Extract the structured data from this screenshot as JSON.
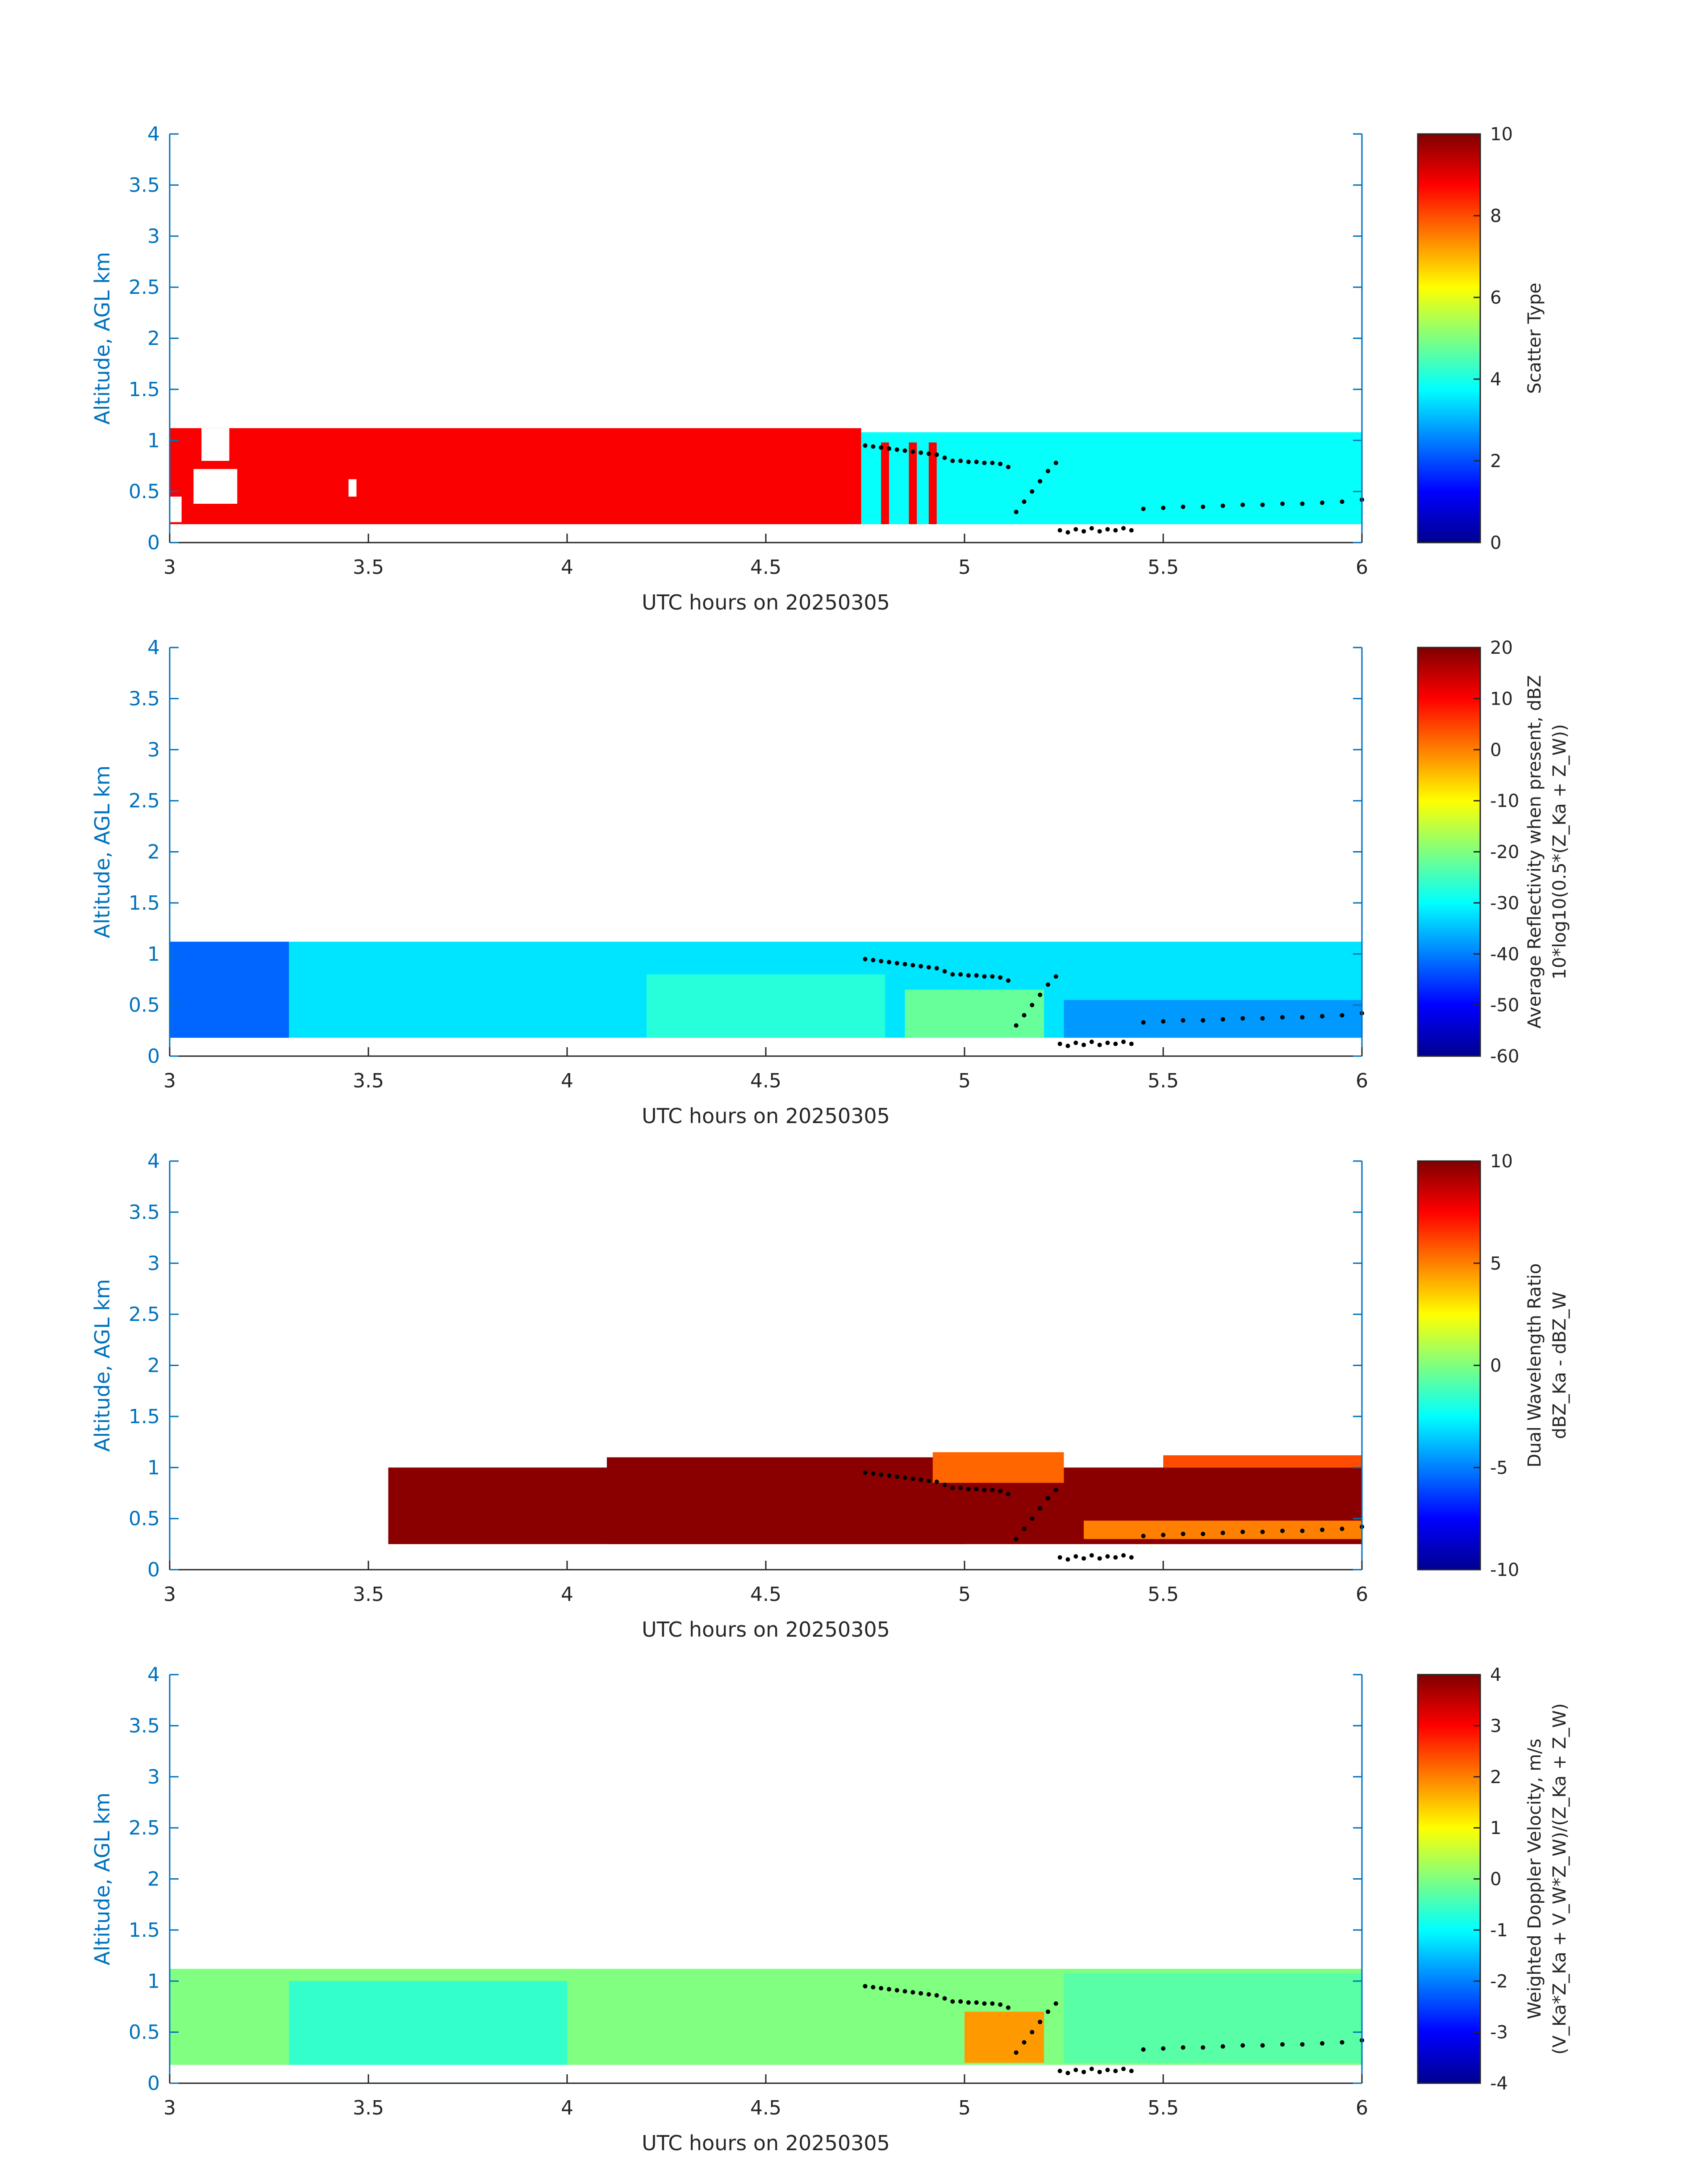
{
  "figure": {
    "xlabel": "UTC hours on 20250305",
    "ylabel": "Altitude, AGL km",
    "xlim": [
      3,
      6
    ],
    "ylim": [
      0,
      4
    ],
    "x_tick_labels": [
      "3",
      "3.5",
      "4",
      "4.5",
      "5",
      "5.5",
      "6"
    ],
    "y_tick_labels": [
      "0",
      "0.5",
      "1",
      "1.5",
      "2",
      "2.5",
      "3",
      "3.5",
      "4"
    ],
    "x_ticks": [
      3,
      3.5,
      4,
      4.5,
      5,
      5.5,
      6
    ],
    "y_ticks": [
      0,
      0.5,
      1,
      1.5,
      2,
      2.5,
      3,
      3.5,
      4
    ],
    "colormap": "jet",
    "axis_color": "#0072bd",
    "marker_color": "#000000"
  },
  "chart_data": [
    {
      "type": "heatmap",
      "colorbar_label_lines": [
        "Scatter Type"
      ],
      "clim": [
        0,
        10
      ],
      "colorbar_ticks": [
        0,
        2,
        4,
        6,
        8,
        10
      ],
      "colorbar_tick_labels": [
        "0",
        "2",
        "4",
        "6",
        "8",
        "10"
      ],
      "segments": [
        {
          "x0": 3.0,
          "x1": 4.74,
          "y0": 0.18,
          "y1": 1.12,
          "value": 8.8
        },
        {
          "x0": 4.74,
          "x1": 6.0,
          "y0": 0.18,
          "y1": 1.08,
          "value": 3.8
        },
        {
          "x0": 4.79,
          "x1": 4.81,
          "y0": 0.18,
          "y1": 0.98,
          "value": 8.8
        },
        {
          "x0": 4.86,
          "x1": 4.88,
          "y0": 0.18,
          "y1": 0.98,
          "value": 8.8
        },
        {
          "x0": 4.91,
          "x1": 4.93,
          "y0": 0.18,
          "y1": 0.98,
          "value": 8.8
        }
      ],
      "gaps": [
        {
          "x0": 3.0,
          "x1": 3.03,
          "y0": 0.2,
          "y1": 0.45
        },
        {
          "x0": 3.06,
          "x1": 3.17,
          "y0": 0.38,
          "y1": 0.72
        },
        {
          "x0": 3.08,
          "x1": 3.15,
          "y0": 0.8,
          "y1": 1.12
        },
        {
          "x0": 3.45,
          "x1": 3.47,
          "y0": 0.45,
          "y1": 0.62
        }
      ]
    },
    {
      "type": "heatmap",
      "colorbar_label_lines": [
        "Average Reflectivity when present, dBZ",
        "10*log10(0.5*(Z_Ka + Z_W))"
      ],
      "clim": [
        -60,
        20
      ],
      "colorbar_ticks": [
        -60,
        -50,
        -40,
        -30,
        -20,
        -10,
        0,
        10,
        20
      ],
      "colorbar_tick_labels": [
        "-60",
        "-50",
        "-40",
        "-30",
        "-20",
        "-10",
        "0",
        "10",
        "20"
      ],
      "segments": [
        {
          "x0": 3.0,
          "x1": 6.0,
          "y0": 0.18,
          "y1": 1.12,
          "value": -32
        },
        {
          "x0": 3.0,
          "x1": 3.3,
          "y0": 0.18,
          "y1": 1.12,
          "value": -42
        },
        {
          "x0": 4.2,
          "x1": 4.8,
          "y0": 0.18,
          "y1": 0.8,
          "value": -27
        },
        {
          "x0": 4.85,
          "x1": 5.2,
          "y0": 0.18,
          "y1": 0.65,
          "value": -22
        },
        {
          "x0": 5.25,
          "x1": 6.0,
          "y0": 0.18,
          "y1": 0.55,
          "value": -38
        }
      ],
      "gaps": []
    },
    {
      "type": "heatmap",
      "colorbar_label_lines": [
        "Dual Wavelength Ratio",
        "dBZ_Ka - dBZ_W"
      ],
      "clim": [
        -10,
        10
      ],
      "colorbar_ticks": [
        -10,
        -5,
        0,
        5,
        10
      ],
      "colorbar_tick_labels": [
        "-10",
        "-5",
        "0",
        "5",
        "10"
      ],
      "segments": [
        {
          "x0": 3.55,
          "x1": 6.0,
          "y0": 0.25,
          "y1": 1.0,
          "value": 9.8
        },
        {
          "x0": 4.1,
          "x1": 5.0,
          "y0": 0.25,
          "y1": 1.1,
          "value": 9.8
        },
        {
          "x0": 4.92,
          "x1": 5.25,
          "y0": 0.85,
          "y1": 1.15,
          "value": 5.5
        },
        {
          "x0": 5.3,
          "x1": 6.0,
          "y0": 0.3,
          "y1": 0.48,
          "value": 5.0
        },
        {
          "x0": 5.5,
          "x1": 6.0,
          "y0": 1.0,
          "y1": 1.12,
          "value": 6.0
        }
      ],
      "gaps": []
    },
    {
      "type": "heatmap",
      "colorbar_label_lines": [
        "Weighted Doppler Velocity, m/s",
        "(V_Ka*Z_Ka + V_W*Z_W)/(Z_Ka + Z_W)"
      ],
      "clim": [
        -4,
        4
      ],
      "colorbar_ticks": [
        -4,
        -3,
        -2,
        -1,
        0,
        1,
        2,
        3,
        4
      ],
      "colorbar_tick_labels": [
        "-4",
        "-3",
        "-2",
        "-1",
        "0",
        "1",
        "2",
        "3",
        "4"
      ],
      "segments": [
        {
          "x0": 3.0,
          "x1": 6.0,
          "y0": 0.18,
          "y1": 1.12,
          "value": 0.0
        },
        {
          "x0": 3.3,
          "x1": 4.0,
          "y0": 0.18,
          "y1": 1.0,
          "value": -0.6
        },
        {
          "x0": 5.0,
          "x1": 5.2,
          "y0": 0.2,
          "y1": 0.7,
          "value": 1.8
        },
        {
          "x0": 5.25,
          "x1": 6.0,
          "y0": 0.2,
          "y1": 1.08,
          "value": -0.3
        }
      ],
      "gaps": []
    }
  ],
  "markers": {
    "line1_x": [
      4.75,
      4.77,
      4.79,
      4.81,
      4.83,
      4.85,
      4.87,
      4.89,
      4.91,
      4.93,
      4.95,
      4.97,
      4.99,
      5.01,
      5.03,
      5.05,
      5.07,
      5.09,
      5.11
    ],
    "line1_y": [
      0.95,
      0.94,
      0.93,
      0.92,
      0.91,
      0.9,
      0.89,
      0.88,
      0.87,
      0.86,
      0.83,
      0.8,
      0.8,
      0.79,
      0.79,
      0.78,
      0.78,
      0.77,
      0.74
    ],
    "line2_x": [
      5.13,
      5.15,
      5.17,
      5.19,
      5.21,
      5.23
    ],
    "line2_y": [
      0.3,
      0.4,
      0.5,
      0.6,
      0.7,
      0.78
    ],
    "line3_x": [
      5.24,
      5.26,
      5.28,
      5.3,
      5.32,
      5.34,
      5.36,
      5.38,
      5.4,
      5.42
    ],
    "line3_y": [
      0.12,
      0.1,
      0.13,
      0.11,
      0.14,
      0.11,
      0.13,
      0.12,
      0.14,
      0.12
    ],
    "line4_x": [
      5.45,
      5.5,
      5.55,
      5.6,
      5.65,
      5.7,
      5.75,
      5.8,
      5.85,
      5.9,
      5.95,
      6.0
    ],
    "line4_y": [
      0.33,
      0.34,
      0.35,
      0.35,
      0.36,
      0.37,
      0.37,
      0.38,
      0.38,
      0.39,
      0.4,
      0.42
    ]
  }
}
